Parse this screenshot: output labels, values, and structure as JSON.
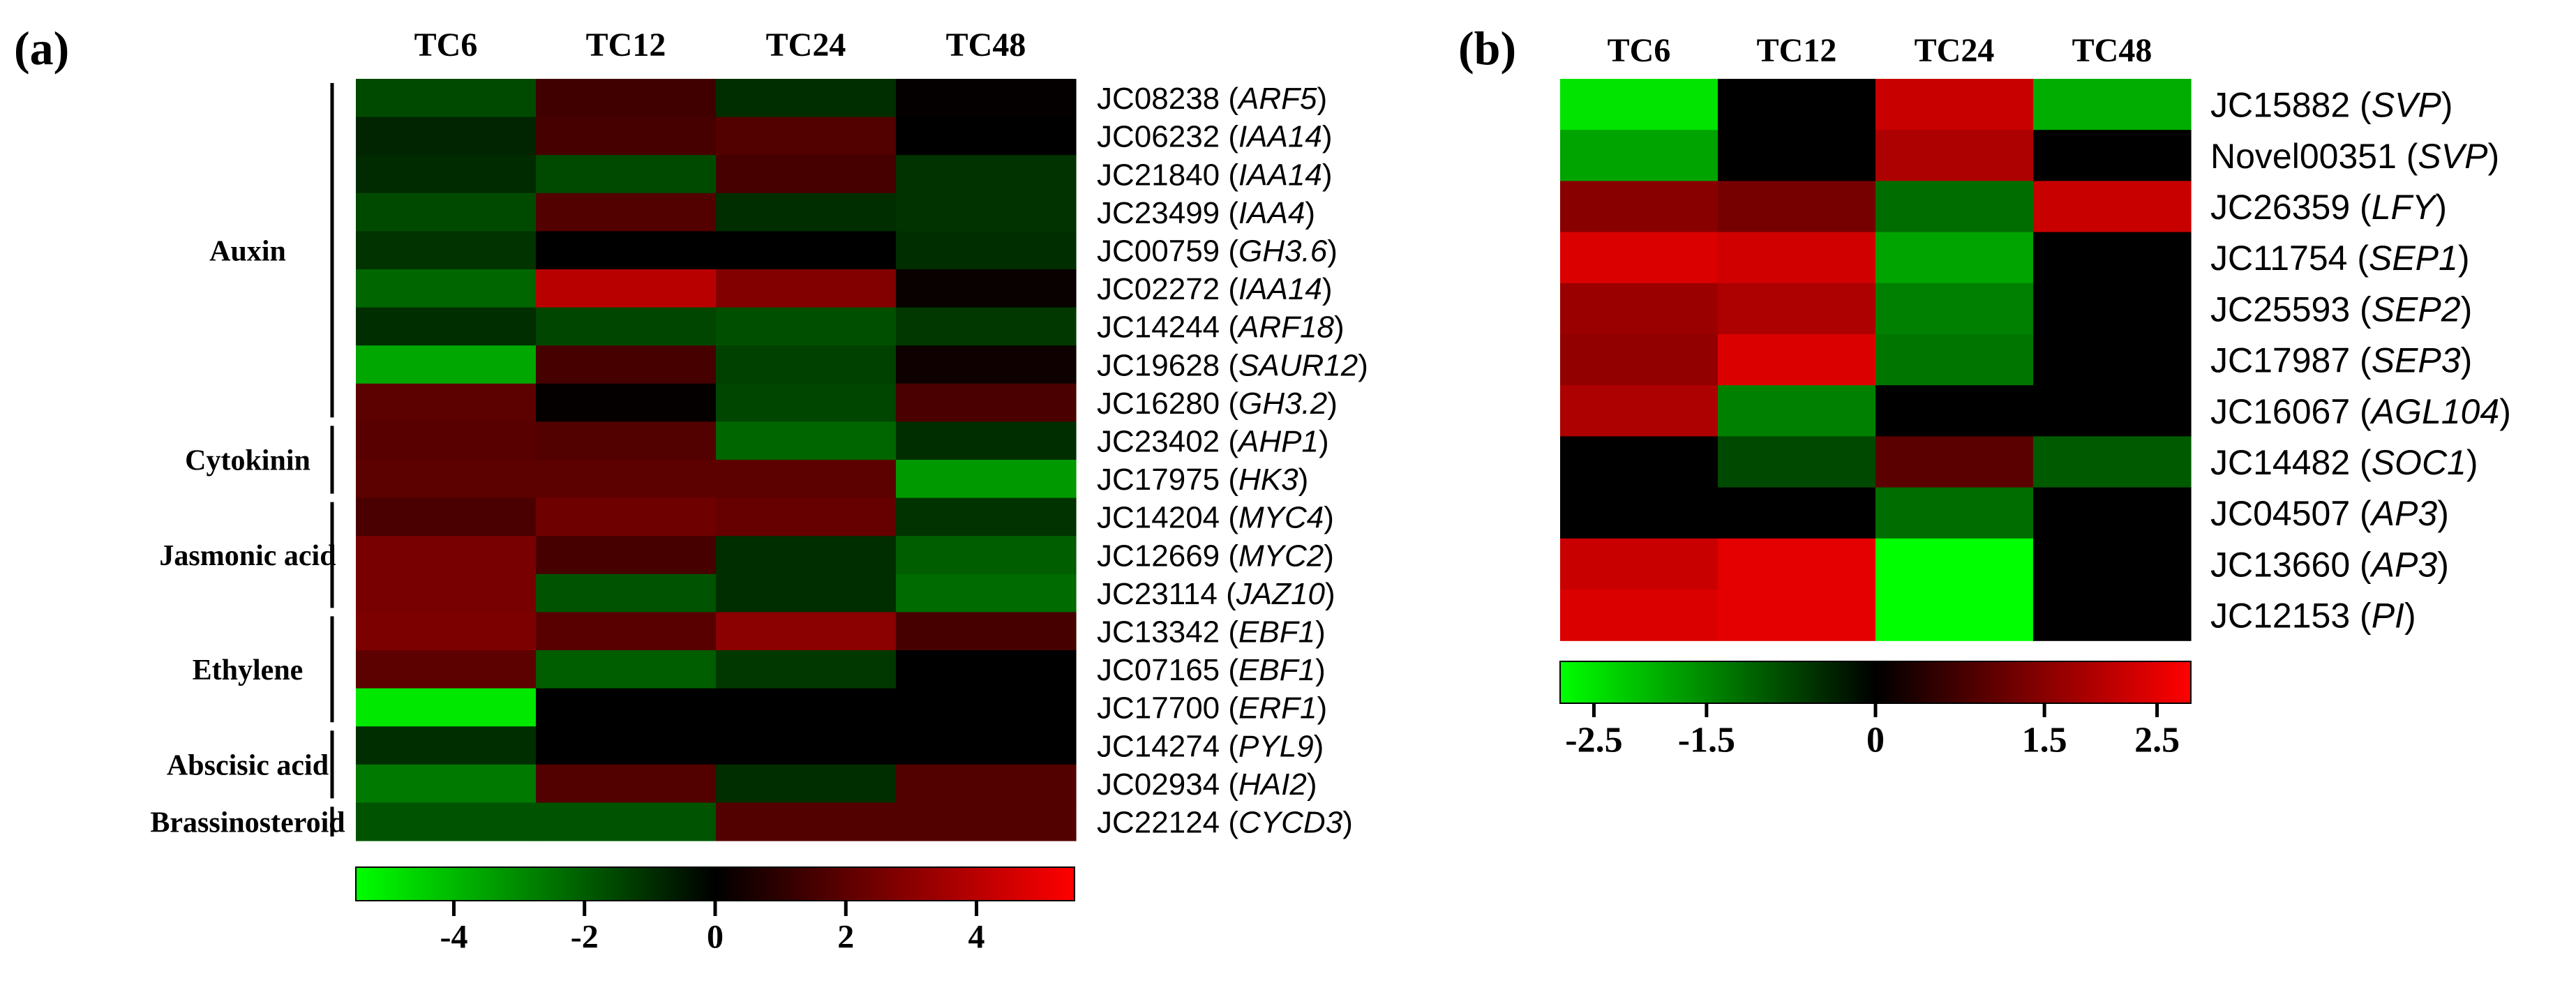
{
  "chart_data": [
    {
      "panel_label": "(a)",
      "type": "heatmap",
      "columns": [
        "TC6",
        "TC12",
        "TC24",
        "TC48"
      ],
      "rows": [
        {
          "id": "JC08238",
          "gene": "ARF5"
        },
        {
          "id": "JC06232",
          "gene": "IAA14"
        },
        {
          "id": "JC21840",
          "gene": "IAA14"
        },
        {
          "id": "JC23499",
          "gene": "IAA4"
        },
        {
          "id": "JC00759",
          "gene": "GH3.6"
        },
        {
          "id": "JC02272",
          "gene": "IAA14"
        },
        {
          "id": "JC14244",
          "gene": "ARF18"
        },
        {
          "id": "JC19628",
          "gene": "SAUR12"
        },
        {
          "id": "JC16280",
          "gene": "GH3.2"
        },
        {
          "id": "JC23402",
          "gene": "AHP1"
        },
        {
          "id": "JC17975",
          "gene": "HK3"
        },
        {
          "id": "JC14204",
          "gene": "MYC4"
        },
        {
          "id": "JC12669",
          "gene": "MYC2"
        },
        {
          "id": "JC23114",
          "gene": "JAZ10"
        },
        {
          "id": "JC13342",
          "gene": "EBF1"
        },
        {
          "id": "JC07165",
          "gene": "EBF1"
        },
        {
          "id": "JC17700",
          "gene": "ERF1"
        },
        {
          "id": "JC14274",
          "gene": "PYL9"
        },
        {
          "id": "JC02934",
          "gene": "HAI2"
        },
        {
          "id": "JC22124",
          "gene": "CYCD3"
        }
      ],
      "values": [
        [
          -1.6,
          1.4,
          -1.0,
          0.1
        ],
        [
          -0.8,
          1.5,
          1.8,
          0.0
        ],
        [
          -0.9,
          -1.6,
          1.5,
          -1.1
        ],
        [
          -1.6,
          1.8,
          -1.0,
          -1.1
        ],
        [
          -1.1,
          0.0,
          0.0,
          -1.0
        ],
        [
          -2.2,
          4.0,
          2.8,
          0.2
        ],
        [
          -1.0,
          -1.5,
          -1.7,
          -1.2
        ],
        [
          -3.6,
          1.5,
          -1.4,
          0.3
        ],
        [
          2.0,
          0.1,
          -1.5,
          1.6
        ],
        [
          1.9,
          1.8,
          -2.2,
          -1.0
        ],
        [
          2.0,
          2.0,
          2.0,
          -3.3
        ],
        [
          1.6,
          2.4,
          2.2,
          -1.1
        ],
        [
          2.6,
          1.5,
          -1.0,
          -2.0
        ],
        [
          2.6,
          -1.8,
          -1.0,
          -2.3
        ],
        [
          2.7,
          1.9,
          3.0,
          1.5
        ],
        [
          2.0,
          -2.0,
          -1.2,
          0.0
        ],
        [
          -5.0,
          0.0,
          0.0,
          0.0
        ],
        [
          -1.0,
          0.0,
          0.0,
          0.0
        ],
        [
          -2.6,
          1.8,
          -1.0,
          1.8
        ],
        [
          -1.8,
          -1.8,
          1.8,
          1.8
        ]
      ],
      "colorscale": {
        "min": -5.5,
        "max": 5.5,
        "low": "#00ff00",
        "mid": "#000000",
        "high": "#ff0000"
      },
      "colorbar_ticks": [
        "-4",
        "-2",
        "0",
        "2",
        "4"
      ],
      "colorbar_tick_values": [
        -4,
        -2,
        0,
        2,
        4
      ],
      "groups": [
        {
          "label": "Auxin",
          "rows": [
            0,
            8
          ]
        },
        {
          "label": "Cytokinin",
          "rows": [
            9,
            10
          ]
        },
        {
          "label": "Jasmonic acid",
          "rows": [
            11,
            13
          ]
        },
        {
          "label": "Ethylene",
          "rows": [
            14,
            16
          ]
        },
        {
          "label": "Abscisic acid",
          "rows": [
            17,
            18
          ]
        },
        {
          "label": "Brassinosteroid",
          "rows": [
            19,
            19
          ]
        }
      ]
    },
    {
      "panel_label": "(b)",
      "type": "heatmap",
      "columns": [
        "TC6",
        "TC12",
        "TC24",
        "TC48"
      ],
      "rows": [
        {
          "id": "JC15882",
          "gene": "SVP"
        },
        {
          "id": "Novel00351",
          "gene": "SVP"
        },
        {
          "id": "JC26359",
          "gene": "LFY"
        },
        {
          "id": "JC11754",
          "gene": "SEP1"
        },
        {
          "id": "JC25593",
          "gene": "SEP2"
        },
        {
          "id": "JC17987",
          "gene": "SEP3"
        },
        {
          "id": "JC16067",
          "gene": "AGL104"
        },
        {
          "id": "JC14482",
          "gene": "SOC1"
        },
        {
          "id": "JC04507",
          "gene": "AP3"
        },
        {
          "id": "JC13660",
          "gene": "AP3"
        },
        {
          "id": "JC12153",
          "gene": "PI"
        }
      ],
      "values": [
        [
          -2.5,
          0.0,
          2.2,
          -1.9
        ],
        [
          -1.8,
          0.0,
          1.9,
          0.0
        ],
        [
          1.5,
          1.3,
          -1.2,
          2.2
        ],
        [
          2.4,
          2.3,
          -1.8,
          0.0
        ],
        [
          1.7,
          1.9,
          -1.4,
          0.0
        ],
        [
          1.6,
          2.4,
          -1.3,
          0.0
        ],
        [
          1.9,
          -1.4,
          0.0,
          0.0
        ],
        [
          0.0,
          -0.8,
          1.0,
          -1.0
        ],
        [
          0.0,
          0.0,
          -1.2,
          0.0
        ],
        [
          2.2,
          2.5,
          -2.8,
          0.0
        ],
        [
          2.4,
          2.5,
          -2.8,
          0.0
        ]
      ],
      "colorscale": {
        "min": -2.8,
        "max": 2.8,
        "low": "#00ff00",
        "mid": "#000000",
        "high": "#ff0000"
      },
      "colorbar_ticks": [
        "-2.5",
        "-1.5",
        "0",
        "1.5",
        "2.5"
      ],
      "colorbar_tick_values": [
        -2.5,
        -1.5,
        0,
        1.5,
        2.5
      ]
    }
  ]
}
